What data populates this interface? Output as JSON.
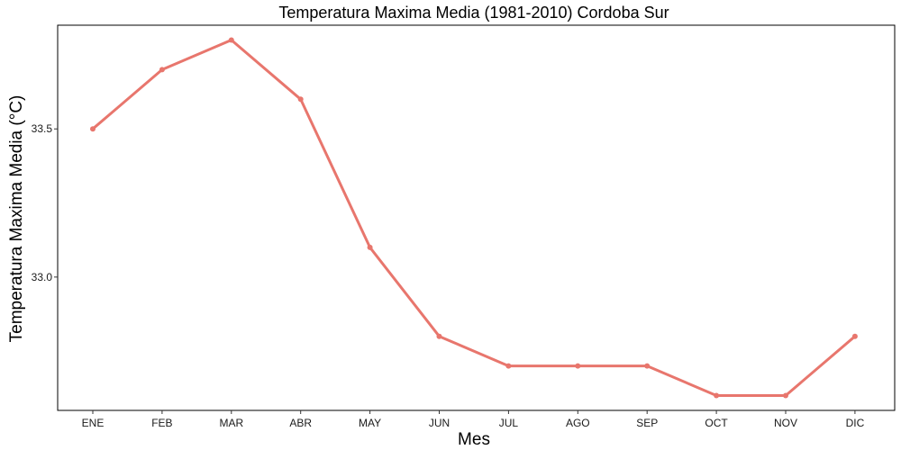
{
  "chart_data": {
    "type": "line",
    "title": "Temperatura Maxima Media (1981-2010)  Cordoba Sur",
    "xlabel": "Mes",
    "ylabel": "Temperatura Maxima Media  (°C)",
    "categories": [
      "ENE",
      "FEB",
      "MAR",
      "ABR",
      "MAY",
      "JUN",
      "JUL",
      "AGO",
      "SEP",
      "OCT",
      "NOV",
      "DIC"
    ],
    "series": [
      {
        "values": [
          33.5,
          33.7,
          33.8,
          33.6,
          33.1,
          32.8,
          32.7,
          32.7,
          32.7,
          32.6,
          32.6,
          32.8
        ]
      }
    ],
    "ylim": [
      32.55,
      33.85
    ],
    "yticks": [
      33.0,
      33.5
    ],
    "ytick_labels": [
      "33.0",
      "33.5"
    ],
    "grid": false,
    "legend": "none",
    "colors": {
      "line": "#E8766D",
      "frame": "#000000"
    }
  }
}
